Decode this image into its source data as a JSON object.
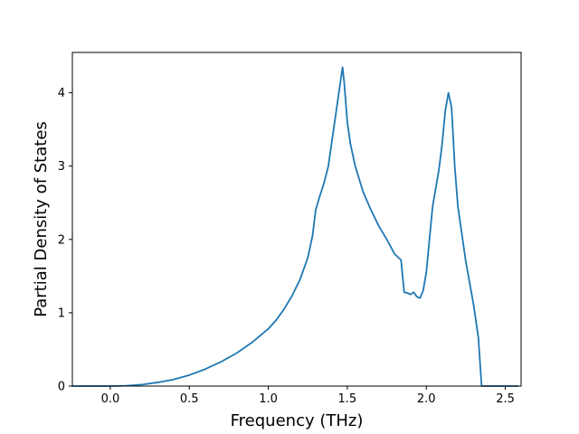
{
  "chart_data": {
    "type": "line",
    "title": "",
    "xlabel": "Frequency (THz)",
    "ylabel": "Partial Density of States",
    "xlim": [
      -0.24,
      2.6
    ],
    "ylim": [
      0,
      4.55
    ],
    "xticks": [
      0.0,
      0.5,
      1.0,
      1.5,
      2.0,
      2.5
    ],
    "xtick_labels": [
      "0.0",
      "0.5",
      "1.0",
      "1.5",
      "2.0",
      "2.5"
    ],
    "yticks": [
      0,
      1,
      2,
      3,
      4
    ],
    "ytick_labels": [
      "0",
      "1",
      "2",
      "3",
      "4"
    ],
    "grid": false,
    "legend": "none",
    "series": [
      {
        "color": "#1f77b4",
        "x": [
          -0.24,
          -0.1,
          0.0,
          0.1,
          0.2,
          0.3,
          0.4,
          0.5,
          0.6,
          0.7,
          0.8,
          0.9,
          1.0,
          1.05,
          1.1,
          1.15,
          1.2,
          1.25,
          1.28,
          1.3,
          1.32,
          1.35,
          1.38,
          1.4,
          1.42,
          1.45,
          1.47,
          1.48,
          1.5,
          1.52,
          1.55,
          1.6,
          1.65,
          1.7,
          1.75,
          1.8,
          1.84,
          1.86,
          1.88,
          1.9,
          1.92,
          1.94,
          1.96,
          1.98,
          2.0,
          2.02,
          2.04,
          2.06,
          2.08,
          2.1,
          2.12,
          2.14,
          2.16,
          2.18,
          2.2,
          2.25,
          2.3,
          2.33,
          2.35,
          2.4,
          2.5,
          2.58
        ],
        "y": [
          0,
          0,
          0,
          0.005,
          0.02,
          0.05,
          0.09,
          0.15,
          0.23,
          0.33,
          0.45,
          0.6,
          0.78,
          0.9,
          1.05,
          1.23,
          1.45,
          1.75,
          2.05,
          2.4,
          2.55,
          2.75,
          3.0,
          3.3,
          3.6,
          4.05,
          4.35,
          4.15,
          3.6,
          3.3,
          3.0,
          2.65,
          2.4,
          2.18,
          2.0,
          1.8,
          1.72,
          1.28,
          1.27,
          1.25,
          1.28,
          1.22,
          1.2,
          1.3,
          1.55,
          2.0,
          2.45,
          2.7,
          2.95,
          3.3,
          3.75,
          4.0,
          3.8,
          3.0,
          2.45,
          1.7,
          1.1,
          0.65,
          0.0,
          0.0,
          0.0,
          0.0
        ]
      }
    ]
  }
}
